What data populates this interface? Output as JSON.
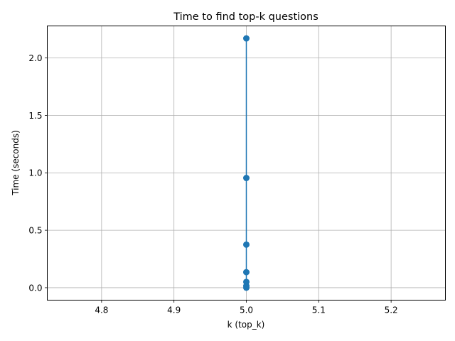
{
  "chart_data": {
    "type": "line",
    "title": "Time to find top-k questions",
    "xlabel": "k (top_k)",
    "ylabel": "Time (seconds)",
    "xlim": [
      4.725,
      5.275
    ],
    "ylim": [
      -0.1085,
      2.2785
    ],
    "xticks": [
      4.8,
      4.9,
      5.0,
      5.1,
      5.2
    ],
    "xtick_labels": [
      "4.8",
      "4.9",
      "5.0",
      "5.1",
      "5.2"
    ],
    "yticks": [
      0.0,
      0.5,
      1.0,
      1.5,
      2.0
    ],
    "ytick_labels": [
      "0.0",
      "0.5",
      "1.0",
      "1.5",
      "2.0"
    ],
    "grid": true,
    "markers": true,
    "series": [
      {
        "x": [
          5,
          5,
          5,
          5,
          5,
          5,
          5
        ],
        "y": [
          0.0,
          0.015,
          0.05,
          0.135,
          0.375,
          0.955,
          2.17
        ],
        "color": "#1f77b4"
      }
    ]
  }
}
